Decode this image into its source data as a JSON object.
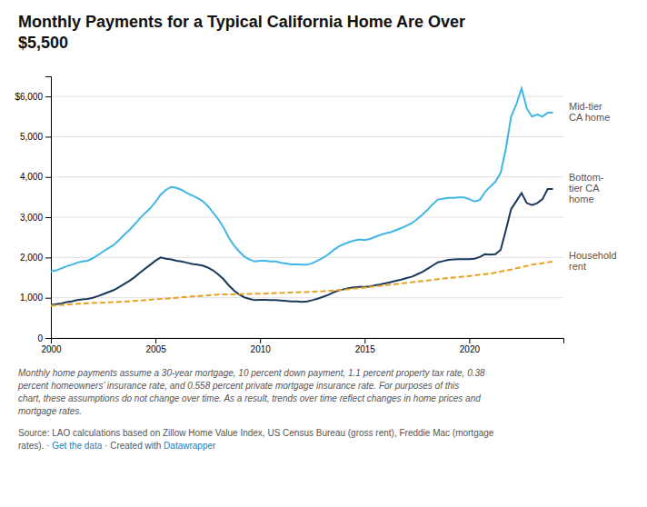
{
  "chart_data": {
    "type": "line",
    "title": "Monthly Payments for a Typical California Home Are Over\n$5,500",
    "xlim": [
      2000,
      2024.5
    ],
    "xticks": [
      2000,
      2005,
      2010,
      2015,
      2020
    ],
    "ylim": [
      0,
      6500
    ],
    "yticks": [
      0,
      {
        "value": 1000,
        "label": "1,000"
      },
      {
        "value": 2000,
        "label": "2,000"
      },
      {
        "value": 3000,
        "label": "3,000"
      },
      {
        "value": 4000,
        "label": "4,000"
      },
      {
        "value": 5000,
        "label": "5,000"
      },
      {
        "value": 6000,
        "label": "$6,000"
      }
    ],
    "grid": true,
    "series": [
      {
        "name": "Mid-tier\nCA home",
        "color": "#41b6e6",
        "line_style": "solid",
        "x": [
          2000.0,
          2000.25,
          2000.5,
          2000.75,
          2001.0,
          2001.25,
          2001.5,
          2001.75,
          2002.0,
          2002.25,
          2002.5,
          2002.75,
          2003.0,
          2003.25,
          2003.5,
          2003.75,
          2004.0,
          2004.25,
          2004.5,
          2004.75,
          2005.0,
          2005.25,
          2005.5,
          2005.75,
          2006.0,
          2006.25,
          2006.5,
          2006.75,
          2007.0,
          2007.25,
          2007.5,
          2007.75,
          2008.0,
          2008.25,
          2008.5,
          2008.75,
          2009.0,
          2009.25,
          2009.5,
          2009.75,
          2010.0,
          2010.25,
          2010.5,
          2010.75,
          2011.0,
          2011.25,
          2011.5,
          2011.75,
          2012.0,
          2012.25,
          2012.5,
          2012.75,
          2013.0,
          2013.25,
          2013.5,
          2013.75,
          2014.0,
          2014.25,
          2014.5,
          2014.75,
          2015.0,
          2015.25,
          2015.5,
          2015.75,
          2016.0,
          2016.25,
          2016.5,
          2016.75,
          2017.0,
          2017.25,
          2017.5,
          2017.75,
          2018.0,
          2018.25,
          2018.5,
          2018.75,
          2019.0,
          2019.25,
          2019.5,
          2019.75,
          2020.0,
          2020.25,
          2020.5,
          2020.75,
          2021.0,
          2021.25,
          2021.5,
          2021.75,
          2022.0,
          2022.25,
          2022.5,
          2022.75,
          2023.0,
          2023.25,
          2023.5,
          2023.75,
          2024.0
        ],
        "values": [
          1650,
          1680,
          1730,
          1780,
          1820,
          1870,
          1900,
          1920,
          1980,
          2060,
          2150,
          2230,
          2310,
          2430,
          2560,
          2680,
          2820,
          2970,
          3100,
          3220,
          3380,
          3560,
          3680,
          3750,
          3730,
          3680,
          3600,
          3540,
          3480,
          3400,
          3280,
          3120,
          2950,
          2750,
          2500,
          2300,
          2150,
          2020,
          1950,
          1900,
          1920,
          1920,
          1900,
          1900,
          1870,
          1850,
          1830,
          1830,
          1820,
          1820,
          1860,
          1920,
          1990,
          2070,
          2180,
          2270,
          2330,
          2380,
          2420,
          2450,
          2430,
          2460,
          2510,
          2560,
          2600,
          2630,
          2680,
          2730,
          2790,
          2850,
          2950,
          3060,
          3180,
          3320,
          3440,
          3460,
          3480,
          3480,
          3490,
          3490,
          3450,
          3390,
          3430,
          3620,
          3760,
          3880,
          4100,
          4700,
          5500,
          5800,
          6200,
          5700,
          5500,
          5550,
          5500,
          5600,
          5600
        ]
      },
      {
        "name": "Bottom-\ntier CA\nhome",
        "color": "#1a3a5c",
        "line_style": "solid",
        "x": [
          2000.0,
          2000.25,
          2000.5,
          2000.75,
          2001.0,
          2001.25,
          2001.5,
          2001.75,
          2002.0,
          2002.25,
          2002.5,
          2002.75,
          2003.0,
          2003.25,
          2003.5,
          2003.75,
          2004.0,
          2004.25,
          2004.5,
          2004.75,
          2005.0,
          2005.25,
          2005.5,
          2005.75,
          2006.0,
          2006.25,
          2006.5,
          2006.75,
          2007.0,
          2007.25,
          2007.5,
          2007.75,
          2008.0,
          2008.25,
          2008.5,
          2008.75,
          2009.0,
          2009.25,
          2009.5,
          2009.75,
          2010.0,
          2010.25,
          2010.5,
          2010.75,
          2011.0,
          2011.25,
          2011.5,
          2011.75,
          2012.0,
          2012.25,
          2012.5,
          2012.75,
          2013.0,
          2013.25,
          2013.5,
          2013.75,
          2014.0,
          2014.25,
          2014.5,
          2014.75,
          2015.0,
          2015.25,
          2015.5,
          2015.75,
          2016.0,
          2016.25,
          2016.5,
          2016.75,
          2017.0,
          2017.25,
          2017.5,
          2017.75,
          2018.0,
          2018.25,
          2018.5,
          2018.75,
          2019.0,
          2019.25,
          2019.5,
          2019.75,
          2020.0,
          2020.25,
          2020.5,
          2020.75,
          2021.0,
          2021.25,
          2021.5,
          2021.75,
          2022.0,
          2022.25,
          2022.5,
          2022.75,
          2023.0,
          2023.25,
          2023.5,
          2023.75,
          2024.0
        ],
        "values": [
          820,
          840,
          860,
          890,
          910,
          940,
          960,
          970,
          1000,
          1040,
          1090,
          1140,
          1190,
          1260,
          1340,
          1420,
          1510,
          1620,
          1720,
          1820,
          1920,
          2000,
          1970,
          1950,
          1920,
          1900,
          1870,
          1840,
          1820,
          1800,
          1750,
          1680,
          1580,
          1460,
          1310,
          1180,
          1080,
          1010,
          970,
          940,
          950,
          950,
          940,
          940,
          930,
          920,
          910,
          910,
          900,
          910,
          940,
          975,
          1020,
          1070,
          1130,
          1180,
          1210,
          1240,
          1260,
          1270,
          1270,
          1280,
          1310,
          1330,
          1360,
          1390,
          1420,
          1450,
          1490,
          1520,
          1580,
          1640,
          1720,
          1800,
          1880,
          1910,
          1940,
          1950,
          1960,
          1960,
          1960,
          1970,
          2010,
          2080,
          2070,
          2080,
          2190,
          2680,
          3200,
          3400,
          3600,
          3350,
          3300,
          3350,
          3450,
          3700,
          3700
        ]
      },
      {
        "name": "Household\nrent",
        "color": "#e8a020",
        "line_style": "dashed",
        "x": [
          2000.0,
          2001.0,
          2002.0,
          2003.0,
          2004.0,
          2005.0,
          2006.0,
          2007.0,
          2008.0,
          2009.0,
          2010.0,
          2011.0,
          2012.0,
          2013.0,
          2014.0,
          2015.0,
          2016.0,
          2017.0,
          2018.0,
          2019.0,
          2020.0,
          2021.0,
          2022.0,
          2023.0,
          2024.0
        ],
        "values": [
          800,
          840,
          870,
          890,
          920,
          960,
          1000,
          1040,
          1080,
          1090,
          1100,
          1120,
          1140,
          1160,
          1200,
          1250,
          1310,
          1370,
          1430,
          1490,
          1540,
          1600,
          1700,
          1820,
          1900
        ]
      }
    ],
    "notes": [
      "Monthly home payments assume a 30-year mortgage, 10 percent down payment, 1.1 percent property tax rate, 0.38",
      "percent homeowners’ insurance rate, and 0.558 percent private mortgage insurance rate. For purposes of this",
      "chart, these assumptions do not change over time. As a result, trends over time reflect changes in home prices and",
      "mortgage rates."
    ],
    "source": [
      [
        {
          "text": "Source: LAO calculations based on Zillow Home Value Index, US Census Bureau (gross rent), Freddie Mac (mortgage"
        }
      ],
      [
        {
          "text": "rates). · "
        },
        {
          "text": "Get the data",
          "color": "#2b7bb9"
        },
        {
          "text": " · Created with "
        },
        {
          "text": "Datawrapper",
          "color": "#2b7bb9"
        }
      ]
    ]
  }
}
